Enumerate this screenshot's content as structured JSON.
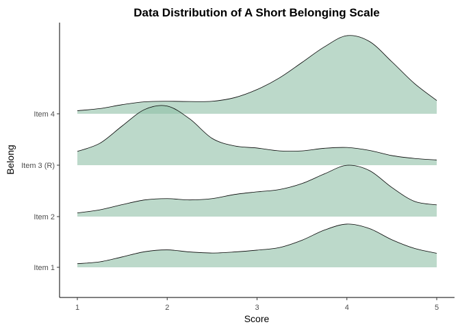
{
  "chart_data": {
    "type": "ridgeline",
    "title": "Data Distribution of A Short Belonging Scale",
    "xlabel": "Score",
    "ylabel": "Belong",
    "xlim": [
      1,
      5
    ],
    "x_ticks": [
      1,
      2,
      3,
      4,
      5
    ],
    "categories": [
      "Item 1",
      "Item 2",
      "Item 3 (R)",
      "Item 4"
    ],
    "fill_color": "#8fbfa7",
    "grid": false,
    "x": [
      1.0,
      1.25,
      1.5,
      1.75,
      2.0,
      2.25,
      2.5,
      2.75,
      3.0,
      3.25,
      3.5,
      3.75,
      4.0,
      4.25,
      4.5,
      4.75,
      5.0
    ],
    "series": [
      {
        "name": "Item 1",
        "values": [
          0.14,
          0.21,
          0.4,
          0.6,
          0.67,
          0.59,
          0.55,
          0.59,
          0.66,
          0.76,
          1.04,
          1.43,
          1.66,
          1.49,
          1.06,
          0.73,
          0.54
        ]
      },
      {
        "name": "Item 2",
        "values": [
          0.14,
          0.26,
          0.46,
          0.64,
          0.69,
          0.64,
          0.69,
          0.85,
          0.95,
          1.04,
          1.27,
          1.64,
          1.97,
          1.77,
          1.12,
          0.59,
          0.45
        ]
      },
      {
        "name": "Item 3 (R)",
        "values": [
          0.53,
          0.84,
          1.51,
          2.14,
          2.27,
          1.78,
          1.03,
          0.74,
          0.66,
          0.55,
          0.55,
          0.65,
          0.68,
          0.57,
          0.37,
          0.26,
          0.2
        ]
      },
      {
        "name": "Item 4",
        "values": [
          0.12,
          0.2,
          0.35,
          0.46,
          0.48,
          0.47,
          0.48,
          0.62,
          0.93,
          1.38,
          1.97,
          2.57,
          3.0,
          2.78,
          2.0,
          1.17,
          0.51
        ]
      }
    ]
  }
}
